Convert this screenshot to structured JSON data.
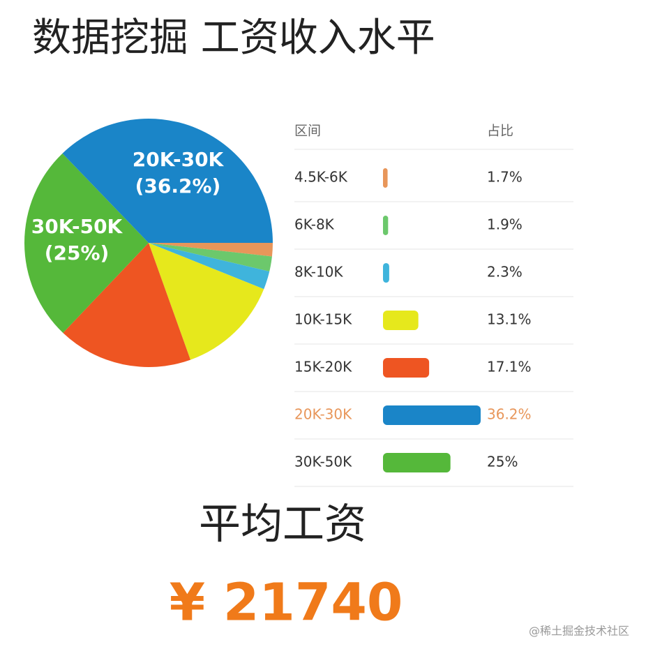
{
  "chart_data": {
    "type": "pie",
    "title": "数据挖掘 工资收入水平",
    "table_headers": [
      "区间",
      "占比"
    ],
    "categories": [
      "4.5K-6K",
      "6K-8K",
      "8K-10K",
      "10K-15K",
      "15K-20K",
      "20K-30K",
      "30K-50K"
    ],
    "values": [
      1.7,
      1.9,
      2.3,
      13.1,
      17.1,
      36.2,
      25
    ],
    "value_labels": [
      "1.7%",
      "1.9%",
      "2.3%",
      "13.1%",
      "17.1%",
      "36.2%",
      "25%"
    ],
    "pie_value_labels": [
      null,
      null,
      null,
      null,
      null,
      "(36.2%)",
      "(25%)"
    ],
    "colors": [
      "#e8965a",
      "#6cc86c",
      "#3fb4dc",
      "#e6e81c",
      "#ee5522",
      "#1a85c8",
      "#55b83a"
    ]
  },
  "summary": {
    "title": "平均工资",
    "value": "¥ 21740"
  },
  "watermark": "@稀土掘金技术社区"
}
